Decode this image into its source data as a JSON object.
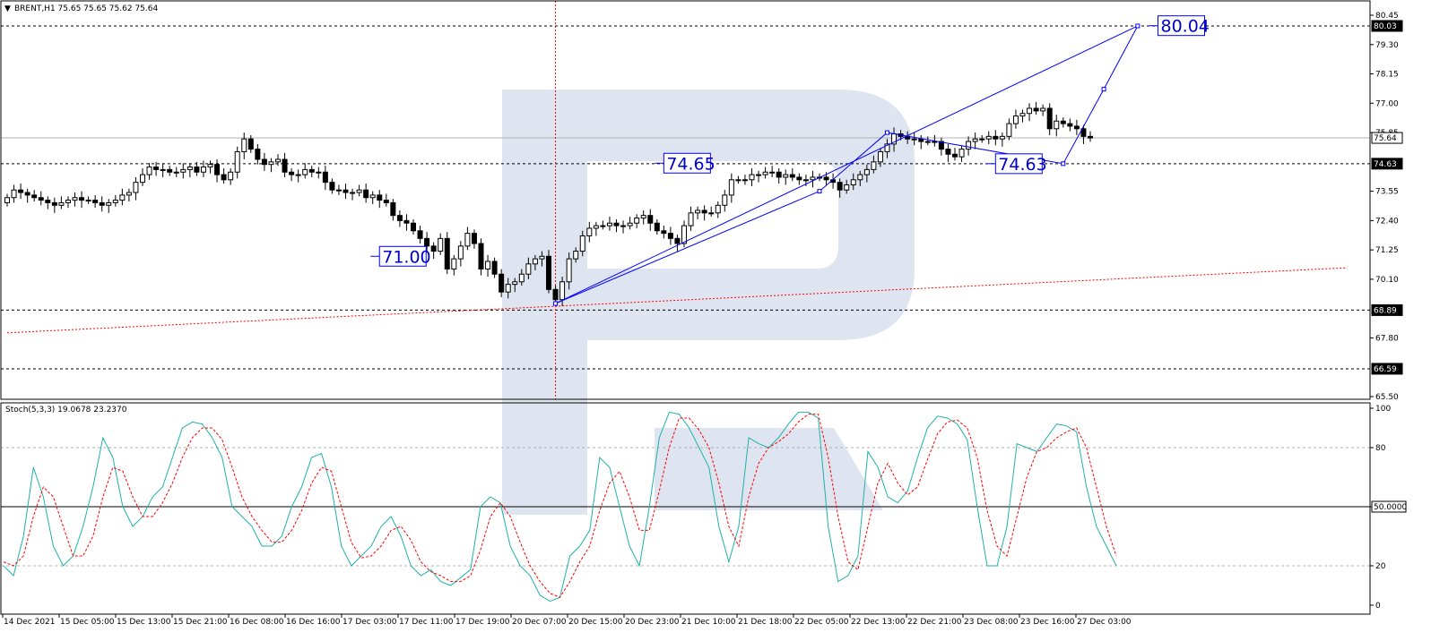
{
  "header": {
    "symbol_line": "BRENT,H1  75.65 75.65 75.62 75.64",
    "indicator_line": "Stoch(5,3,3) 19.0678 23.2370"
  },
  "colors": {
    "candle": "#000000",
    "trendline": "#0000ff",
    "support_dotted": "#ff0000",
    "stoch_main": "#20b2aa",
    "stoch_signal": "#ff0000",
    "watermark": "#dfe5f0"
  },
  "chart_data": [
    {
      "type": "candlestick",
      "title": "BRENT,H1",
      "ohlc_current": {
        "open": 75.65,
        "high": 75.65,
        "low": 75.62,
        "close": 75.64
      },
      "ylim": [
        65.5,
        80.6
      ],
      "y_ticks": [
        "80.45",
        "79.30",
        "78.15",
        "77.00",
        "75.85",
        "73.55",
        "72.40",
        "71.25",
        "70.10",
        "67.80",
        "65.50"
      ],
      "y_tick_values": [
        80.45,
        79.3,
        78.15,
        77.0,
        75.85,
        73.55,
        72.4,
        71.25,
        70.1,
        67.8,
        65.5
      ],
      "horizontal_levels": [
        {
          "value": 80.03,
          "label": "80.03"
        },
        {
          "value": 75.64,
          "label": "75.64"
        },
        {
          "value": 74.63,
          "label": "74.63"
        },
        {
          "value": 68.89,
          "label": "68.89"
        },
        {
          "value": 66.59,
          "label": "66.59"
        }
      ],
      "forecast_labels": [
        {
          "text": "71.00",
          "x_index": 55,
          "value": 71.0
        },
        {
          "text": "74.65",
          "x_index": 97,
          "value": 74.65
        },
        {
          "text": "74.63",
          "x_index": 146,
          "value": 74.63
        },
        {
          "text": "80.04",
          "x_index": 170,
          "value": 80.04
        }
      ],
      "forecast_path": [
        {
          "x_index": 81,
          "value": 69.15
        },
        {
          "x_index": 120,
          "value": 73.55
        },
        {
          "x_index": 130,
          "value": 75.85
        },
        {
          "x_index": 156,
          "value": 74.63
        },
        {
          "x_index": 162,
          "value": 77.55
        },
        {
          "x_index": 167,
          "value": 80.03
        }
      ],
      "trend_channel_line": [
        {
          "x_index": 81,
          "value": 69.15
        },
        {
          "x_index": 167,
          "value": 80.03
        }
      ],
      "support_line": [
        {
          "x_index": 0,
          "value": 68.0
        },
        {
          "x_index": 190,
          "value": 70.55
        }
      ],
      "vertical_marker_x_index": 81,
      "closes": [
        73.3,
        73.6,
        73.5,
        73.4,
        73.3,
        73.2,
        73.1,
        73.0,
        73.1,
        73.2,
        73.3,
        73.2,
        73.2,
        73.1,
        73.0,
        73.1,
        73.2,
        73.4,
        73.5,
        73.9,
        74.2,
        74.5,
        74.4,
        74.4,
        74.3,
        74.3,
        74.4,
        74.5,
        74.3,
        74.5,
        74.6,
        74.2,
        74.0,
        74.3,
        75.1,
        75.6,
        75.2,
        74.8,
        74.6,
        74.7,
        74.8,
        74.3,
        74.2,
        74.2,
        74.4,
        74.3,
        74.3,
        73.9,
        73.6,
        73.6,
        73.5,
        73.5,
        73.6,
        73.3,
        73.4,
        73.2,
        73.1,
        72.6,
        72.4,
        72.3,
        72.0,
        71.7,
        71.4,
        71.2,
        71.7,
        70.5,
        70.9,
        71.4,
        71.9,
        71.5,
        70.5,
        70.8,
        70.3,
        69.6,
        69.9,
        70.0,
        70.3,
        70.7,
        70.9,
        71.0,
        69.7,
        69.3,
        70.0,
        70.9,
        71.2,
        71.8,
        72.1,
        72.2,
        72.2,
        72.3,
        72.2,
        72.2,
        72.3,
        72.5,
        72.6,
        72.3,
        72.0,
        71.9,
        71.7,
        71.5,
        72.2,
        72.7,
        72.8,
        72.7,
        72.7,
        73.0,
        73.4,
        74.0,
        74.0,
        74.0,
        74.2,
        74.2,
        74.3,
        74.3,
        74.1,
        74.2,
        74.1,
        74.0,
        74.0,
        74.1,
        74.1,
        74.0,
        73.9,
        73.6,
        73.8,
        74.0,
        74.2,
        74.4,
        74.7,
        75.1,
        75.4,
        75.8,
        75.7,
        75.6,
        75.6,
        75.5,
        75.5,
        75.5,
        75.2,
        75.0,
        74.9,
        75.2,
        75.5,
        75.6,
        75.6,
        75.7,
        75.6,
        75.7,
        76.2,
        76.5,
        76.6,
        76.8,
        76.7,
        76.8,
        76.0,
        76.3,
        76.2,
        76.1,
        76.0,
        75.7,
        75.64
      ],
      "x_tick_labels": [
        "14 Dec 2021",
        "15 Dec 05:00",
        "15 Dec 13:00",
        "15 Dec 21:00",
        "16 Dec 08:00",
        "16 Dec 16:00",
        "17 Dec 03:00",
        "17 Dec 11:00",
        "17 Dec 19:00",
        "20 Dec 07:00",
        "20 Dec 15:00",
        "20 Dec 23:00",
        "21 Dec 10:00",
        "21 Dec 18:00",
        "22 Dec 05:00",
        "22 Dec 13:00",
        "22 Dec 21:00",
        "23 Dec 08:00",
        "23 Dec 16:00",
        "27 Dec 03:00"
      ]
    },
    {
      "type": "line",
      "title": "Stoch(5,3,3)",
      "ylim": [
        0,
        100
      ],
      "y_ticks": [
        "100",
        "80",
        "50.0000",
        "20",
        "0"
      ],
      "y_tick_values": [
        100,
        80,
        50,
        20,
        0
      ],
      "series": [
        {
          "name": "Main",
          "values": [
            20,
            15,
            35,
            70,
            55,
            30,
            20,
            25,
            40,
            60,
            85,
            75,
            50,
            40,
            45,
            55,
            60,
            75,
            90,
            93,
            92,
            85,
            75,
            50,
            45,
            40,
            30,
            30,
            35,
            50,
            60,
            75,
            77,
            60,
            30,
            20,
            25,
            30,
            40,
            45,
            35,
            20,
            15,
            18,
            12,
            10,
            14,
            18,
            50,
            55,
            52,
            30,
            20,
            15,
            5,
            2,
            4,
            25,
            30,
            38,
            75,
            70,
            50,
            30,
            20,
            50,
            85,
            98,
            97,
            90,
            80,
            70,
            40,
            22,
            40,
            85,
            82,
            80,
            85,
            92,
            98,
            98,
            95,
            40,
            12,
            15,
            25,
            78,
            70,
            55,
            52,
            58,
            75,
            90,
            96,
            95,
            92,
            84,
            50,
            20,
            20,
            40,
            82,
            80,
            78,
            85,
            92,
            91,
            88,
            60,
            40,
            30,
            20
          ],
          "color": "#20b2aa"
        },
        {
          "name": "Signal",
          "values": [
            22,
            20,
            25,
            45,
            60,
            55,
            40,
            25,
            25,
            35,
            55,
            70,
            68,
            55,
            45,
            45,
            52,
            62,
            75,
            85,
            90,
            90,
            84,
            70,
            55,
            45,
            38,
            32,
            32,
            38,
            48,
            62,
            70,
            68,
            50,
            32,
            24,
            25,
            30,
            38,
            40,
            33,
            22,
            17,
            15,
            12,
            12,
            15,
            28,
            45,
            52,
            45,
            32,
            20,
            12,
            6,
            4,
            12,
            22,
            30,
            48,
            62,
            68,
            55,
            38,
            38,
            58,
            80,
            95,
            95,
            89,
            80,
            62,
            40,
            30,
            55,
            72,
            80,
            83,
            87,
            93,
            97,
            97,
            75,
            45,
            22,
            18,
            40,
            62,
            72,
            62,
            56,
            60,
            74,
            87,
            93,
            94,
            90,
            75,
            48,
            30,
            25,
            45,
            65,
            78,
            80,
            85,
            88,
            90,
            80,
            60,
            40,
            25
          ],
          "color": "#ff0000"
        }
      ],
      "reference_levels": [
        80,
        50,
        20
      ]
    }
  ]
}
